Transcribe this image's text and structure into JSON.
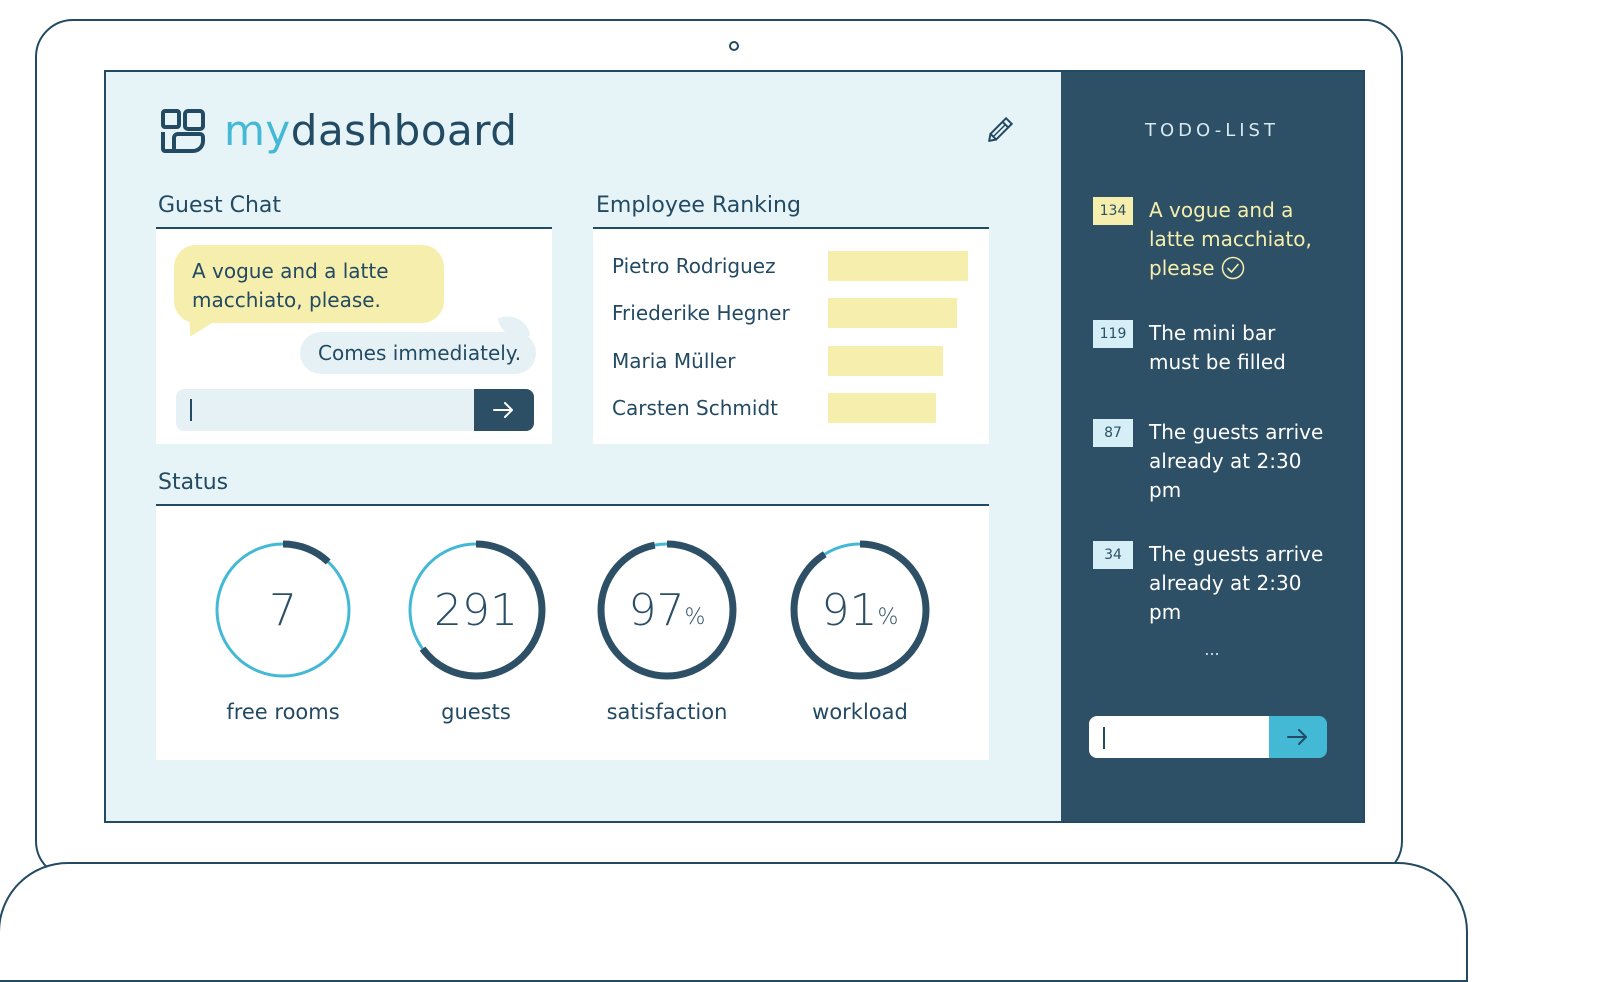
{
  "app": {
    "logo_prefix": "my",
    "logo_rest": "dashboard"
  },
  "guest_chat": {
    "title": "Guest Chat",
    "guest_message": "A vogue and a latte macchiato, please.",
    "reply_message": "Comes immediately.",
    "input_value": "",
    "send_icon": "arrow-right-icon"
  },
  "employee_ranking": {
    "title": "Employee Ranking",
    "rows": [
      {
        "name": "Pietro Rodriguez",
        "score": 1.0
      },
      {
        "name": "Friederike Hegner",
        "score": 0.92
      },
      {
        "name": "Maria Müller",
        "score": 0.82
      },
      {
        "name": "Carsten Schmidt",
        "score": 0.77
      }
    ]
  },
  "status": {
    "title": "Status",
    "stats": [
      {
        "value": "7",
        "unit": "",
        "label": "free rooms",
        "fill": 0.12
      },
      {
        "value": "291",
        "unit": "",
        "label": "guests",
        "fill": 0.65
      },
      {
        "value": "97",
        "unit": "%",
        "label": "satisfaction",
        "fill": 0.97
      },
      {
        "value": "91",
        "unit": "%",
        "label": "workload",
        "fill": 0.91
      }
    ]
  },
  "todo": {
    "title": "TODO-LIST",
    "items": [
      {
        "id": "134",
        "text": "A vogue and a latte macchiato, please",
        "done": true
      },
      {
        "id": "119",
        "text": "The mini bar must be filled",
        "done": false
      },
      {
        "id": "87",
        "text": "The guests arrive already at 2:30 pm",
        "done": false
      },
      {
        "id": "34",
        "text": "The guests arrive already at 2:30 pm",
        "done": false
      }
    ],
    "more": "...",
    "input_value": ""
  },
  "colors": {
    "navy": "#2d5066",
    "cyan": "#43b9d6",
    "yellow": "#f6eeac",
    "light_bg": "#e6f4f8"
  }
}
